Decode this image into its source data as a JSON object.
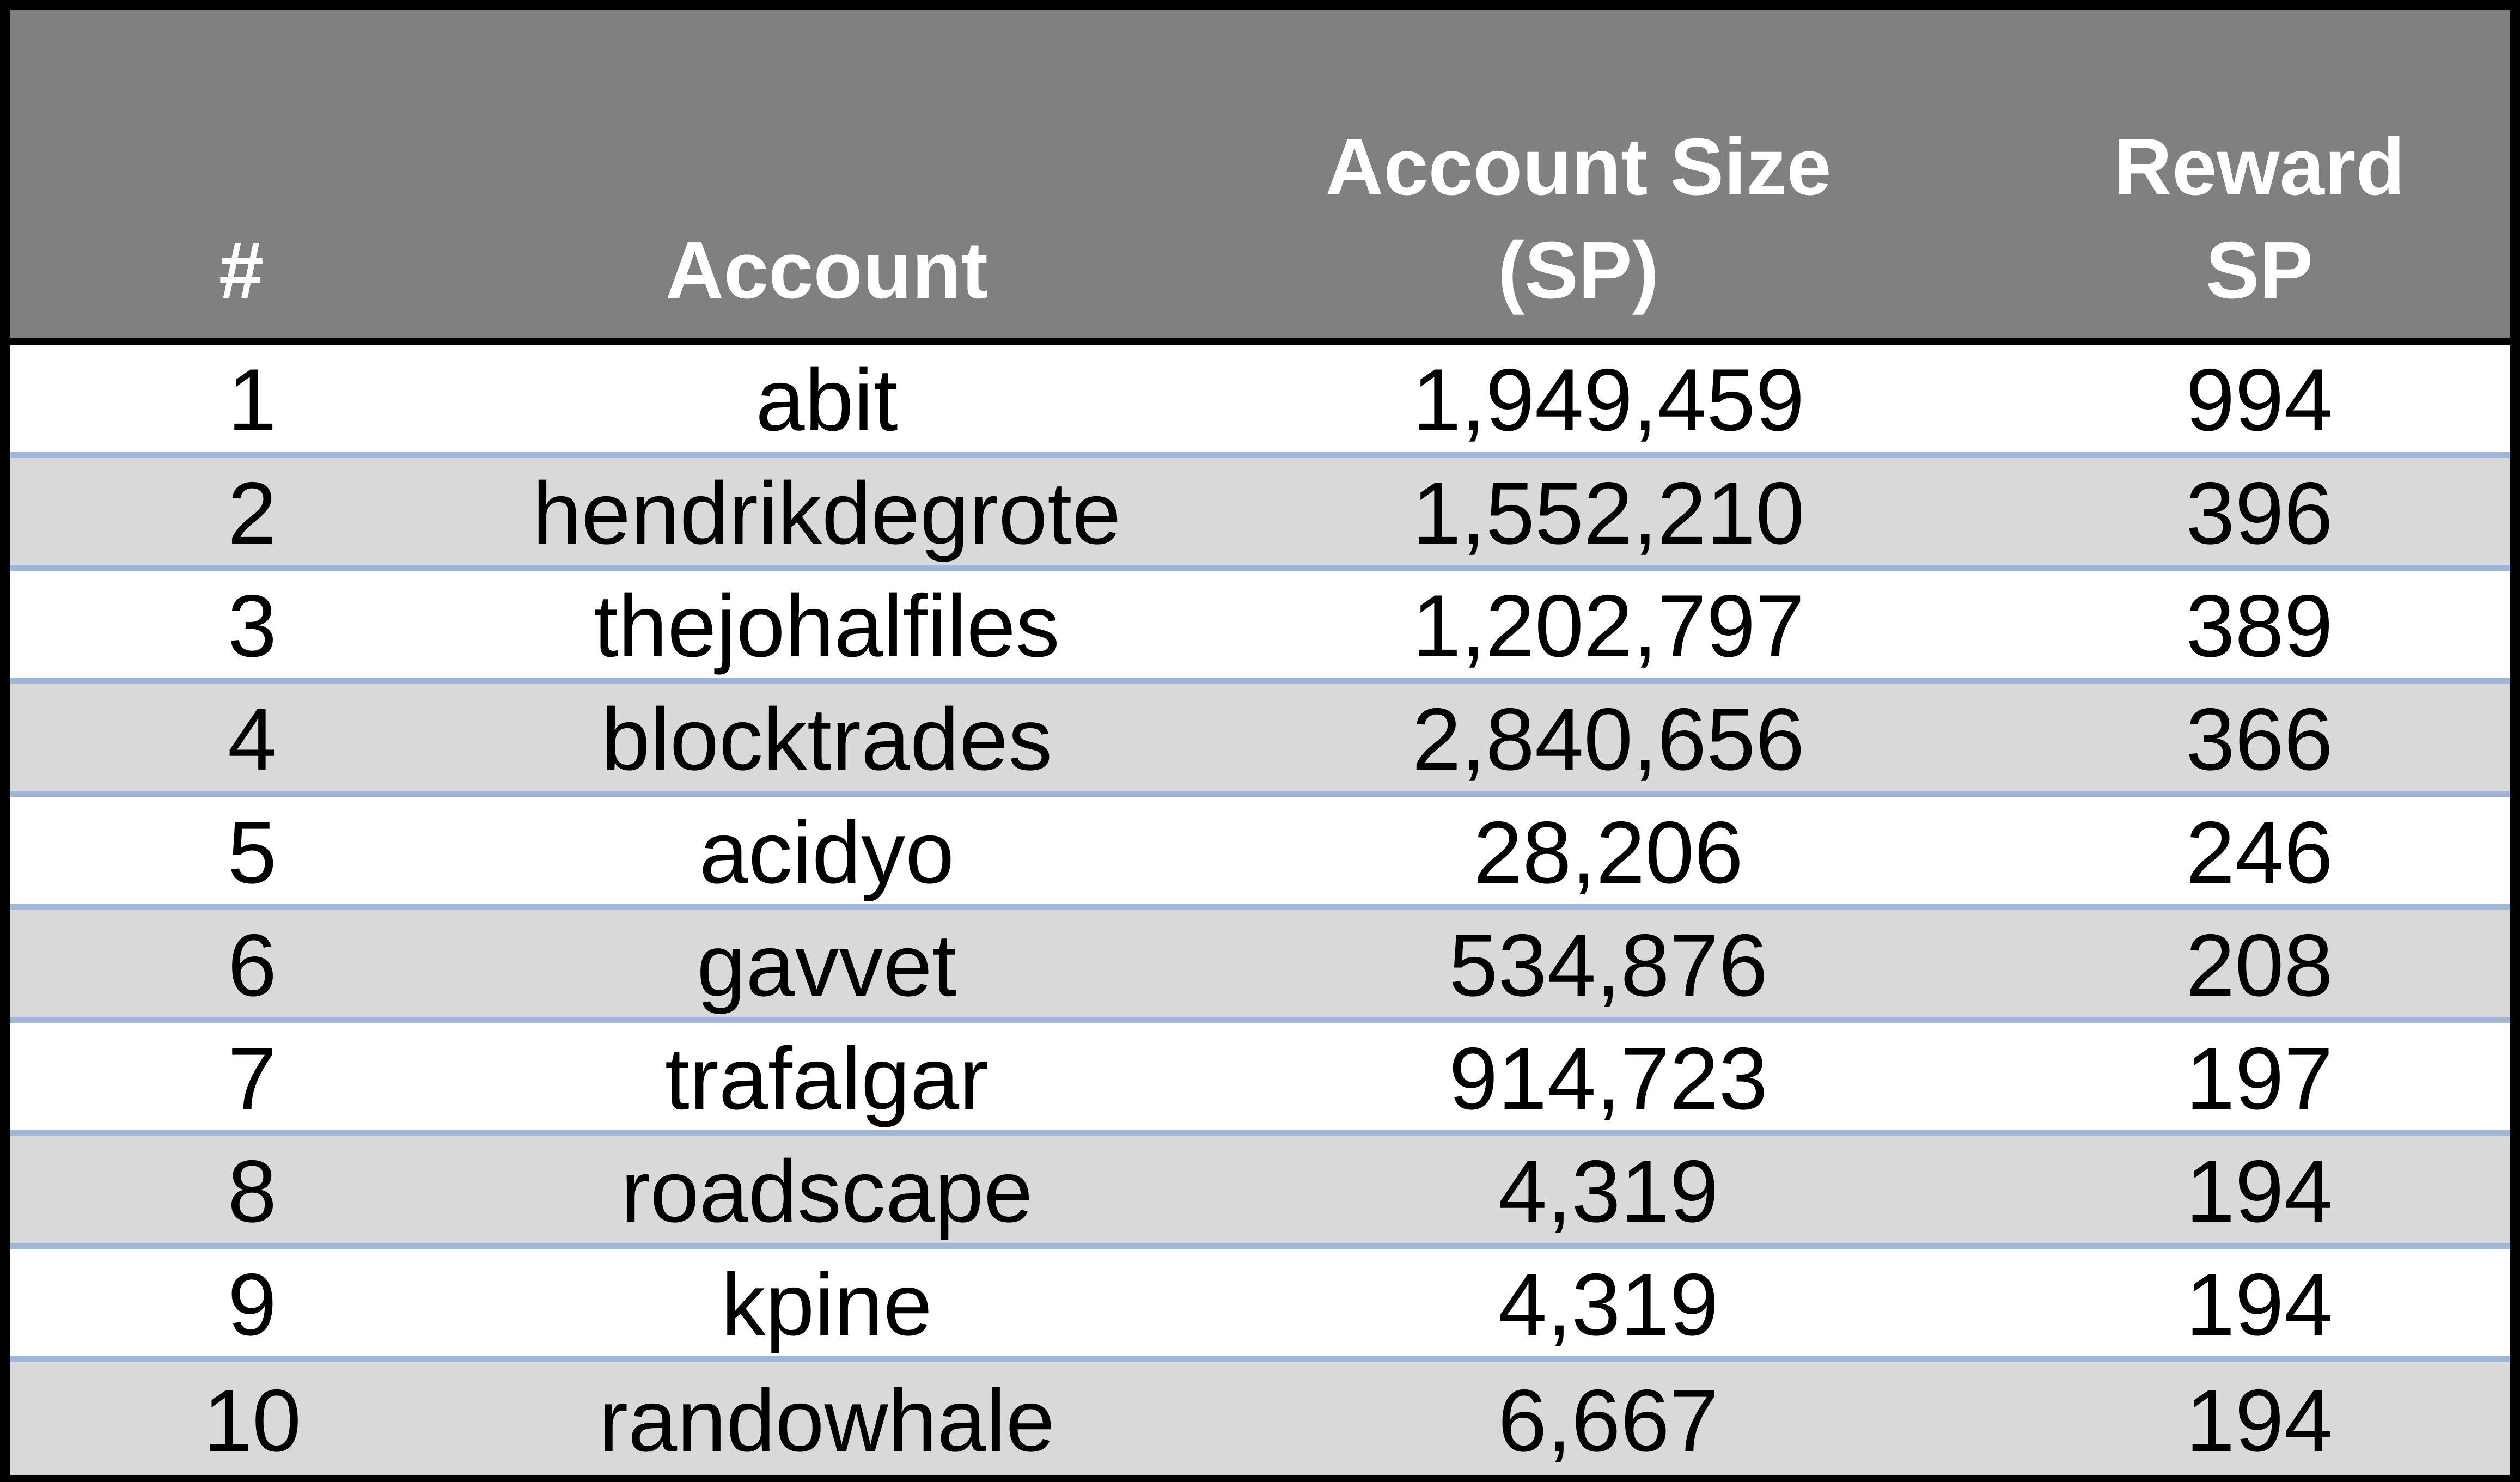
{
  "chart_data": {
    "type": "table",
    "columns": [
      "#",
      "Account",
      "Account Size (SP)",
      "Reward SP"
    ],
    "header": {
      "rank": "#",
      "account": "Account",
      "size": "Account Size\n(SP)",
      "reward": "Reward\nSP"
    },
    "rows": [
      {
        "rank": "1",
        "account": "abit",
        "size": "1,949,459",
        "reward": "994"
      },
      {
        "rank": "2",
        "account": "hendrikdegrote",
        "size": "1,552,210",
        "reward": "396"
      },
      {
        "rank": "3",
        "account": "thejohalfiles",
        "size": "1,202,797",
        "reward": "389"
      },
      {
        "rank": "4",
        "account": "blocktrades",
        "size": "2,840,656",
        "reward": "366"
      },
      {
        "rank": "5",
        "account": "acidyo",
        "size": "28,206",
        "reward": "246"
      },
      {
        "rank": "6",
        "account": "gavvet",
        "size": "534,876",
        "reward": "208"
      },
      {
        "rank": "7",
        "account": "trafalgar",
        "size": "914,723",
        "reward": "197"
      },
      {
        "rank": "8",
        "account": "roadscape",
        "size": "4,319",
        "reward": "194"
      },
      {
        "rank": "9",
        "account": "kpine",
        "size": "4,319",
        "reward": "194"
      },
      {
        "rank": "10",
        "account": "randowhale",
        "size": "6,667",
        "reward": "194"
      }
    ],
    "colors": {
      "header_background": "#808080",
      "header_text": "#ffffff",
      "row_alternate": "#d9d9d9",
      "row_divider": "#9db6d9",
      "border": "#000000"
    }
  }
}
